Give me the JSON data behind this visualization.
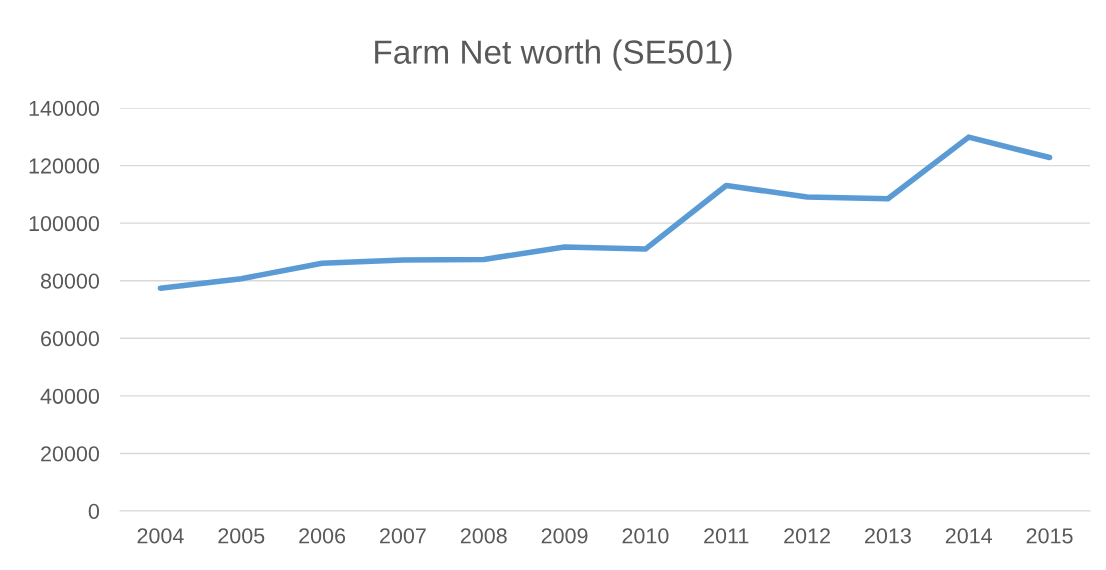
{
  "chart_data": {
    "type": "line",
    "title": "Farm Net worth (SE501)",
    "categories": [
      "2004",
      "2005",
      "2006",
      "2007",
      "2008",
      "2009",
      "2010",
      "2011",
      "2012",
      "2013",
      "2014",
      "2015"
    ],
    "series": [
      {
        "color": "#5b9bd5",
        "values": [
          77400,
          80700,
          86100,
          87200,
          87400,
          91700,
          91000,
          113100,
          109100,
          108500,
          129900,
          122800
        ]
      }
    ],
    "ylim": [
      0,
      140000
    ],
    "yticks": [
      0,
      20000,
      40000,
      60000,
      80000,
      100000,
      120000,
      140000
    ],
    "grid": "y",
    "marker": "none",
    "line_style": "solid"
  }
}
